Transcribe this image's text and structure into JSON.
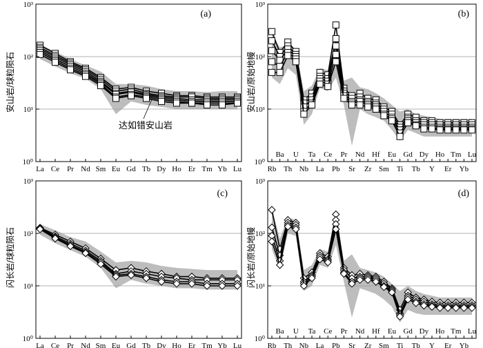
{
  "chart_data": [
    {
      "type": "line",
      "panel_label": "(a)",
      "ylabel": "安山岩/球粒陨石",
      "yscale": "log",
      "ylim": [
        1,
        1000
      ],
      "y_ticks": [
        "10⁰",
        "10¹",
        "10²",
        "10³"
      ],
      "grid": "horizontal at 10 and 100",
      "categories": [
        "La",
        "Ce",
        "Pr",
        "Nd",
        "Sm",
        "Eu",
        "Gd",
        "Tb",
        "Dy",
        "Ho",
        "Er",
        "Tm",
        "Yb",
        "Lu"
      ],
      "marker": "square",
      "annotation": "达如错安山岩",
      "range_band": {
        "upper": [
          170,
          125,
          90,
          68,
          52,
          30,
          30,
          28,
          24,
          22,
          22,
          21,
          22,
          22
        ],
        "lower": [
          90,
          65,
          48,
          38,
          24,
          8,
          14,
          12,
          11,
          10,
          10,
          10,
          10,
          10
        ]
      },
      "series": [
        {
          "name": "s1",
          "values": [
            165,
            115,
            80,
            60,
            40,
            24,
            26,
            22,
            20,
            18,
            18,
            17,
            17,
            17
          ]
        },
        {
          "name": "s2",
          "values": [
            150,
            105,
            75,
            56,
            37,
            22,
            24,
            20,
            18,
            17,
            17,
            16,
            16,
            16
          ]
        },
        {
          "name": "s3",
          "values": [
            140,
            98,
            70,
            52,
            34,
            20,
            22,
            19,
            17,
            16,
            15,
            15,
            15,
            15
          ]
        },
        {
          "name": "s4",
          "values": [
            130,
            90,
            65,
            48,
            32,
            19,
            21,
            18,
            16,
            15,
            14,
            14,
            14,
            14
          ]
        },
        {
          "name": "s5",
          "values": [
            120,
            84,
            60,
            45,
            30,
            17,
            19,
            17,
            15,
            14,
            13,
            13,
            13,
            13
          ]
        },
        {
          "name": "s6",
          "values": [
            110,
            78,
            56,
            42,
            28,
            16,
            18,
            16,
            14,
            13,
            13,
            12,
            12,
            13
          ]
        }
      ]
    },
    {
      "type": "line",
      "panel_label": "(b)",
      "ylabel": "安山岩/原始地幔",
      "yscale": "log",
      "ylim": [
        1,
        1000
      ],
      "y_ticks": [
        "10⁰",
        "10¹",
        "10²",
        "10³"
      ],
      "grid": "horizontal at 10 and 100",
      "categories": [
        "Rb",
        "Ba",
        "Th",
        "U",
        "Nb",
        "Ta",
        "La",
        "Ce",
        "Pb",
        "Pr",
        "Sr",
        "Nd",
        "Zr",
        "Hf",
        "Sm",
        "Eu",
        "Ti",
        "Gd",
        "Tb",
        "Dy",
        "Y",
        "Ho",
        "Er",
        "Tm",
        "Yb",
        "Lu"
      ],
      "marker": "square",
      "range_band": {
        "upper": [
          260,
          150,
          170,
          140,
          22,
          28,
          60,
          55,
          200,
          35,
          40,
          26,
          24,
          20,
          16,
          12,
          9,
          10,
          8,
          7.5,
          7,
          6.5,
          6.5,
          6.5,
          6.5,
          6.5
        ],
        "lower": [
          40,
          30,
          60,
          45,
          5,
          8,
          25,
          22,
          40,
          12,
          2,
          10,
          8,
          7,
          6,
          4,
          2.5,
          4,
          3.5,
          3,
          3,
          3,
          3,
          3,
          3,
          3
        ]
      },
      "series": [
        {
          "name": "s1",
          "values": [
            300,
            120,
            190,
            125,
            15,
            20,
            50,
            45,
            400,
            25,
            18,
            20,
            16,
            15,
            11,
            9,
            5,
            8,
            7,
            6,
            6,
            5.5,
            5.5,
            5.5,
            5.5,
            5.5
          ]
        },
        {
          "name": "s2",
          "values": [
            200,
            100,
            160,
            110,
            13,
            17,
            42,
            38,
            220,
            22,
            16,
            17,
            14,
            13,
            10,
            8,
            4.5,
            7,
            6,
            5.5,
            5.5,
            5,
            5,
            5,
            5,
            5
          ]
        },
        {
          "name": "s3",
          "values": [
            130,
            85,
            140,
            100,
            11,
            15,
            38,
            34,
            160,
            20,
            14,
            15,
            13,
            12,
            9,
            7,
            4,
            6.5,
            5.5,
            5,
            5,
            4.5,
            4.5,
            4.5,
            4.5,
            4.5
          ]
        },
        {
          "name": "s4",
          "values": [
            80,
            65,
            120,
            90,
            9,
            13,
            34,
            30,
            110,
            18,
            13,
            14,
            12,
            11,
            8,
            6.5,
            3.5,
            6,
            5,
            4.5,
            4.5,
            4.2,
            4.2,
            4.2,
            4.2,
            4.2
          ]
        },
        {
          "name": "s5",
          "values": [
            50,
            50,
            105,
            80,
            8,
            12,
            30,
            27,
            80,
            16,
            12,
            12,
            11,
            10,
            7.5,
            6,
            3,
            5.5,
            4.8,
            4.2,
            4.2,
            4,
            4,
            4,
            4,
            4
          ]
        }
      ]
    },
    {
      "type": "line",
      "panel_label": "(c)",
      "ylabel": "闪长岩/球粒陨石",
      "yscale": "log",
      "ylim": [
        1,
        1000
      ],
      "y_ticks": [
        "10⁰",
        "10¹",
        "10²",
        "10³"
      ],
      "grid": "horizontal at 10 and 100",
      "categories": [
        "La",
        "Ce",
        "Pr",
        "Nd",
        "Sm",
        "Eu",
        "Gd",
        "Tb",
        "Dy",
        "Ho",
        "Er",
        "Tm",
        "Yb",
        "Lu"
      ],
      "marker": "diamond",
      "range_band": {
        "upper": [
          150,
          115,
          85,
          70,
          45,
          28,
          30,
          28,
          24,
          22,
          21,
          20,
          20,
          20
        ],
        "lower": [
          95,
          65,
          48,
          36,
          22,
          9,
          13,
          11,
          10,
          9,
          9,
          8.5,
          8.5,
          8.5
        ]
      },
      "series": [
        {
          "name": "s1",
          "values": [
            128,
            95,
            70,
            52,
            33,
            20,
            22,
            19,
            17,
            15,
            15,
            14,
            14,
            14
          ]
        },
        {
          "name": "s2",
          "values": [
            125,
            88,
            64,
            47,
            30,
            17,
            19,
            17,
            15,
            14,
            13,
            13,
            13,
            13
          ]
        },
        {
          "name": "s3",
          "values": [
            122,
            84,
            60,
            44,
            28,
            16,
            17,
            15,
            13,
            12,
            12,
            11,
            11,
            11
          ]
        },
        {
          "name": "s4",
          "values": [
            120,
            80,
            57,
            42,
            26,
            15,
            16,
            14,
            12,
            11,
            11,
            10,
            10,
            10
          ]
        }
      ]
    },
    {
      "type": "line",
      "panel_label": "(d)",
      "ylabel": "闪长岩/原始地幔",
      "yscale": "log",
      "ylim": [
        1,
        1000
      ],
      "y_ticks": [
        "10⁰",
        "10¹",
        "10²",
        "10³"
      ],
      "grid": "horizontal at 10 and 100",
      "categories": [
        "Rb",
        "Ba",
        "Th",
        "U",
        "Nb",
        "Ta",
        "La",
        "Ce",
        "Pb",
        "Pr",
        "Sr",
        "Nd",
        "Zr",
        "Hf",
        "Sm",
        "Eu",
        "Ti",
        "Gd",
        "Tb",
        "Dy",
        "Y",
        "Ho",
        "Er",
        "Tm",
        "Yb",
        "Lu"
      ],
      "marker": "diamond",
      "range_band": {
        "upper": [
          300,
          80,
          200,
          180,
          20,
          25,
          50,
          45,
          250,
          30,
          40,
          22,
          20,
          18,
          15,
          11,
          8,
          10,
          8,
          7,
          6.5,
          6,
          6,
          6,
          6,
          6
        ],
        "lower": [
          50,
          20,
          100,
          90,
          8,
          10,
          25,
          22,
          60,
          12,
          2.5,
          9,
          8,
          7,
          5.5,
          4,
          2,
          3.5,
          3,
          2.8,
          2.8,
          2.8,
          2.8,
          2.8,
          2.8,
          2.8
        ]
      },
      "series": [
        {
          "name": "s1",
          "values": [
            280,
            50,
            180,
            160,
            14,
            18,
            42,
            36,
            230,
            22,
            16,
            17,
            16,
            15,
            12,
            9,
            3.5,
            7.5,
            6,
            5.5,
            5,
            4.8,
            4.8,
            4.8,
            4.8,
            4.8
          ]
        },
        {
          "name": "s2",
          "values": [
            130,
            38,
            160,
            145,
            12,
            16,
            38,
            32,
            180,
            20,
            14,
            15,
            15,
            14,
            11,
            8.5,
            3,
            6.5,
            5.5,
            5,
            4.5,
            4.3,
            4.3,
            4.3,
            4.3,
            4.3
          ]
        },
        {
          "name": "s3",
          "values": [
            90,
            30,
            145,
            130,
            11,
            15,
            35,
            30,
            150,
            18,
            12,
            14,
            14,
            13,
            10,
            8,
            2.8,
            6,
            5,
            4.5,
            4.2,
            4,
            4,
            4,
            4,
            4
          ]
        },
        {
          "name": "s4",
          "values": [
            70,
            25,
            135,
            120,
            10,
            14,
            32,
            28,
            120,
            17,
            11,
            13,
            13,
            12,
            9.5,
            7.5,
            2.6,
            5.5,
            4.7,
            4.2,
            4,
            3.8,
            3.8,
            3.8,
            3.8,
            3.8
          ]
        }
      ]
    }
  ]
}
